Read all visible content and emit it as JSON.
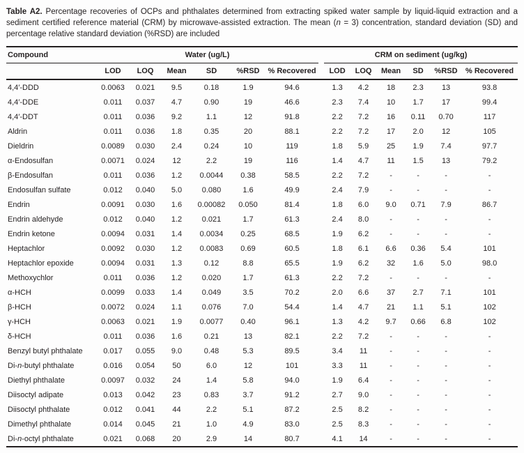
{
  "caption": {
    "label": "Table A2.",
    "text": " Percentage recoveries of OCPs and phthalates determined from extracting spiked water sample by liquid-liquid extraction and a sediment certified reference material (CRM) by microwave-assisted extraction. The mean (*n* = 3) concentration, standard deviation (SD) and percentage relative standard deviation (%RSD) are included"
  },
  "table": {
    "compound_header": "Compound",
    "groups": [
      {
        "label": "Water (ug/L)"
      },
      {
        "label": "CRM on sediment (ug/kg)"
      }
    ],
    "sub_headers": [
      "LOD",
      "LOQ",
      "Mean",
      "SD",
      "%RSD",
      "% Recovered"
    ],
    "rows": [
      {
        "compound": "4,4′-DDD",
        "water": [
          "0.0063",
          "0.021",
          "9.5",
          "0.18",
          "1.9",
          "94.6"
        ],
        "crm": [
          "1.3",
          "4.2",
          "18",
          "2.3",
          "13",
          "93.8"
        ]
      },
      {
        "compound": "4,4′-DDE",
        "water": [
          "0.011",
          "0.037",
          "4.7",
          "0.90",
          "19",
          "46.6"
        ],
        "crm": [
          "2.3",
          "7.4",
          "10",
          "1.7",
          "17",
          "99.4"
        ]
      },
      {
        "compound": "4,4′-DDT",
        "water": [
          "0.011",
          "0.036",
          "9.2",
          "1.1",
          "12",
          "91.8"
        ],
        "crm": [
          "2.2",
          "7.2",
          "16",
          "0.11",
          "0.70",
          "117"
        ]
      },
      {
        "compound": "Aldrin",
        "water": [
          "0.011",
          "0.036",
          "1.8",
          "0.35",
          "20",
          "88.1"
        ],
        "crm": [
          "2.2",
          "7.2",
          "17",
          "2.0",
          "12",
          "105"
        ]
      },
      {
        "compound": "Dieldrin",
        "water": [
          "0.0089",
          "0.030",
          "2.4",
          "0.24",
          "10",
          "119"
        ],
        "crm": [
          "1.8",
          "5.9",
          "25",
          "1.9",
          "7.4",
          "97.7"
        ]
      },
      {
        "compound": "α-Endosulfan",
        "water": [
          "0.0071",
          "0.024",
          "12",
          "2.2",
          "19",
          "116"
        ],
        "crm": [
          "1.4",
          "4.7",
          "11",
          "1.5",
          "13",
          "79.2"
        ]
      },
      {
        "compound": "β-Endosulfan",
        "water": [
          "0.011",
          "0.036",
          "1.2",
          "0.0044",
          "0.38",
          "58.5"
        ],
        "crm": [
          "2.2",
          "7.2",
          "-",
          "-",
          "-",
          "-"
        ]
      },
      {
        "compound": "Endosulfan sulfate",
        "water": [
          "0.012",
          "0.040",
          "5.0",
          "0.080",
          "1.6",
          "49.9"
        ],
        "crm": [
          "2.4",
          "7.9",
          "-",
          "-",
          "-",
          "-"
        ]
      },
      {
        "compound": "Endrin",
        "water": [
          "0.0091",
          "0.030",
          "1.6",
          "0.00082",
          "0.050",
          "81.4"
        ],
        "crm": [
          "1.8",
          "6.0",
          "9.0",
          "0.71",
          "7.9",
          "86.7"
        ]
      },
      {
        "compound": "Endrin aldehyde",
        "water": [
          "0.012",
          "0.040",
          "1.2",
          "0.021",
          "1.7",
          "61.3"
        ],
        "crm": [
          "2.4",
          "8.0",
          "-",
          "-",
          "-",
          "-"
        ]
      },
      {
        "compound": "Endrin ketone",
        "water": [
          "0.0094",
          "0.031",
          "1.4",
          "0.0034",
          "0.25",
          "68.5"
        ],
        "crm": [
          "1.9",
          "6.2",
          "-",
          "-",
          "-",
          "-"
        ]
      },
      {
        "compound": "Heptachlor",
        "water": [
          "0.0092",
          "0.030",
          "1.2",
          "0.0083",
          "0.69",
          "60.5"
        ],
        "crm": [
          "1.8",
          "6.1",
          "6.6",
          "0.36",
          "5.4",
          "101"
        ]
      },
      {
        "compound": "Heptachlor epoxide",
        "water": [
          "0.0094",
          "0.031",
          "1.3",
          "0.12",
          "8.8",
          "65.5"
        ],
        "crm": [
          "1.9",
          "6.2",
          "32",
          "1.6",
          "5.0",
          "98.0"
        ]
      },
      {
        "compound": "Methoxychlor",
        "water": [
          "0.011",
          "0.036",
          "1.2",
          "0.020",
          "1.7",
          "61.3"
        ],
        "crm": [
          "2.2",
          "7.2",
          "-",
          "-",
          "-",
          "-"
        ]
      },
      {
        "compound": "α-HCH",
        "water": [
          "0.0099",
          "0.033",
          "1.4",
          "0.049",
          "3.5",
          "70.2"
        ],
        "crm": [
          "2.0",
          "6.6",
          "37",
          "2.7",
          "7.1",
          "101"
        ]
      },
      {
        "compound": "β-HCH",
        "water": [
          "0.0072",
          "0.024",
          "1.1",
          "0.076",
          "7.0",
          "54.4"
        ],
        "crm": [
          "1.4",
          "4.7",
          "21",
          "1.1",
          "5.1",
          "102"
        ]
      },
      {
        "compound": "γ-HCH",
        "water": [
          "0.0063",
          "0.021",
          "1.9",
          "0.0077",
          "0.40",
          "96.1"
        ],
        "crm": [
          "1.3",
          "4.2",
          "9.7",
          "0.66",
          "6.8",
          "102"
        ]
      },
      {
        "compound": "δ-HCH",
        "water": [
          "0.011",
          "0.036",
          "1.6",
          "0.21",
          "13",
          "82.1"
        ],
        "crm": [
          "2.2",
          "7.2",
          "-",
          "-",
          "-",
          "-"
        ]
      },
      {
        "compound": "Benzyl butyl phthalate",
        "water": [
          "0.017",
          "0.055",
          "9.0",
          "0.48",
          "5.3",
          "89.5"
        ],
        "crm": [
          "3.4",
          "11",
          "-",
          "-",
          "-",
          "-"
        ]
      },
      {
        "compound": "Di-*n*-butyl phthalate",
        "water": [
          "0.016",
          "0.054",
          "50",
          "6.0",
          "12",
          "101"
        ],
        "crm": [
          "3.3",
          "11",
          "-",
          "-",
          "-",
          "-"
        ]
      },
      {
        "compound": "Diethyl phthalate",
        "water": [
          "0.0097",
          "0.032",
          "24",
          "1.4",
          "5.8",
          "94.0"
        ],
        "crm": [
          "1.9",
          "6.4",
          "-",
          "-",
          "-",
          "-"
        ]
      },
      {
        "compound": "Diisoctyl adipate",
        "water": [
          "0.013",
          "0.042",
          "23",
          "0.83",
          "3.7",
          "91.2"
        ],
        "crm": [
          "2.7",
          "9.0",
          "-",
          "-",
          "-",
          "-"
        ]
      },
      {
        "compound": "Diisoctyl phthalate",
        "water": [
          "0.012",
          "0.041",
          "44",
          "2.2",
          "5.1",
          "87.2"
        ],
        "crm": [
          "2.5",
          "8.2",
          "-",
          "-",
          "-",
          "-"
        ]
      },
      {
        "compound": "Dimethyl phthalate",
        "water": [
          "0.014",
          "0.045",
          "21",
          "1.0",
          "4.9",
          "83.0"
        ],
        "crm": [
          "2.5",
          "8.3",
          "-",
          "-",
          "-",
          "-"
        ]
      },
      {
        "compound": "Di-*n*-octyl phthalate",
        "water": [
          "0.021",
          "0.068",
          "20",
          "2.9",
          "14",
          "80.7"
        ],
        "crm": [
          "4.1",
          "14",
          "-",
          "-",
          "-",
          "-"
        ]
      }
    ]
  },
  "colors": {
    "text": "#231f20",
    "rule": "#231f20",
    "background": "#fdfdfd"
  }
}
